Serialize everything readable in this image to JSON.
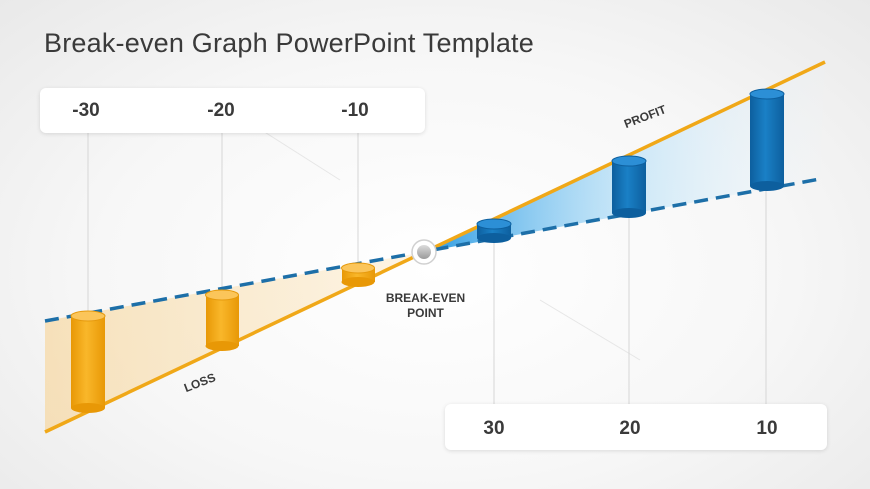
{
  "title": "Break-even Graph PowerPoint Template",
  "top_values": [
    "-30",
    "-20",
    "-10"
  ],
  "bottom_values": [
    "30",
    "20",
    "10"
  ],
  "labels": {
    "profit": "PROFIT",
    "loss": "LOSS",
    "break_even_line1": "BREAK-EVEN",
    "break_even_line2": "POINT"
  },
  "colors": {
    "revenue_line": "#f0a818",
    "cost_line": "#1d6fa8",
    "loss_bar": "#f5a70f",
    "profit_bar": "#1070b8"
  }
}
